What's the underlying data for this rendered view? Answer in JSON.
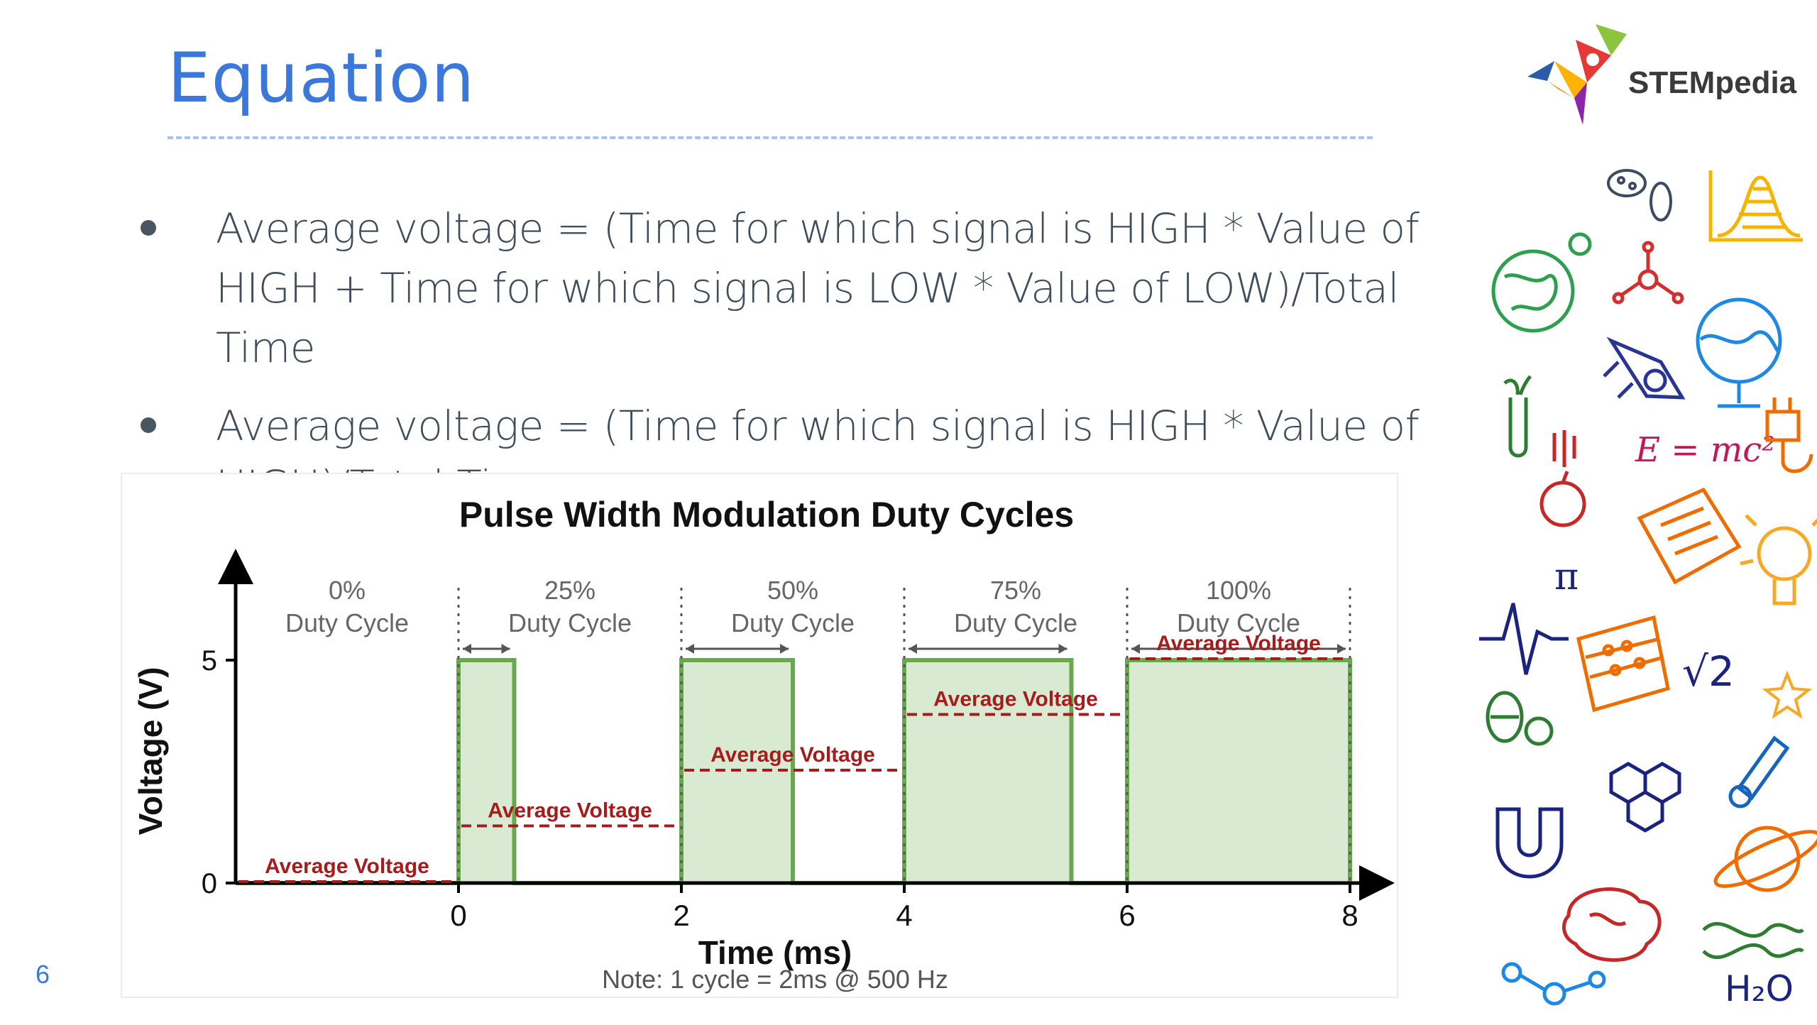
{
  "slide": {
    "title": "Equation",
    "page_number": "6",
    "bullets": [
      {
        "text": "Average voltage = (Time for which signal is HIGH * Value of HIGH + Time for which signal is LOW * Value of LOW)/Total Time"
      },
      {
        "text": "Average voltage = (Time for which signal is HIGH * Value of HIGH)/Total Time"
      }
    ]
  },
  "logo": {
    "text": "STEMpedia"
  },
  "doodles": {
    "emc2": "E = mc²",
    "pi": "π",
    "sqrt2": "√2",
    "h2o": "H₂O"
  },
  "colors": {
    "title": "#3b78dc",
    "bullet_text": "#3f4d5c",
    "signal": "#6aa84f",
    "signal_fill": "#d9ead3",
    "average": "#a61c1c"
  },
  "chart_data": {
    "type": "line",
    "title": "Pulse Width Modulation Duty Cycles",
    "xlabel": "Time (ms)",
    "ylabel": "Voltage (V)",
    "note": "Note: 1 cycle = 2ms @ 500 Hz",
    "xlim": [
      -2,
      8
    ],
    "ylim": [
      0,
      5
    ],
    "x_ticks": [
      "0",
      "2",
      "4",
      "6",
      "8"
    ],
    "y_ticks": [
      "0",
      "5"
    ],
    "average_label": "Average Voltage",
    "segments": [
      {
        "pct": "0%",
        "label": "Duty Cycle",
        "start": -2,
        "end": 0,
        "duty": 0,
        "average": 0
      },
      {
        "pct": "25%",
        "label": "Duty Cycle",
        "start": 0,
        "end": 2,
        "duty": 0.25,
        "average": 1.25
      },
      {
        "pct": "50%",
        "label": "Duty Cycle",
        "start": 2,
        "end": 4,
        "duty": 0.5,
        "average": 2.5
      },
      {
        "pct": "75%",
        "label": "Duty Cycle",
        "start": 4,
        "end": 6,
        "duty": 0.75,
        "average": 3.75
      },
      {
        "pct": "100%",
        "label": "Duty Cycle",
        "start": 6,
        "end": 8,
        "duty": 1.0,
        "average": 5
      }
    ]
  }
}
